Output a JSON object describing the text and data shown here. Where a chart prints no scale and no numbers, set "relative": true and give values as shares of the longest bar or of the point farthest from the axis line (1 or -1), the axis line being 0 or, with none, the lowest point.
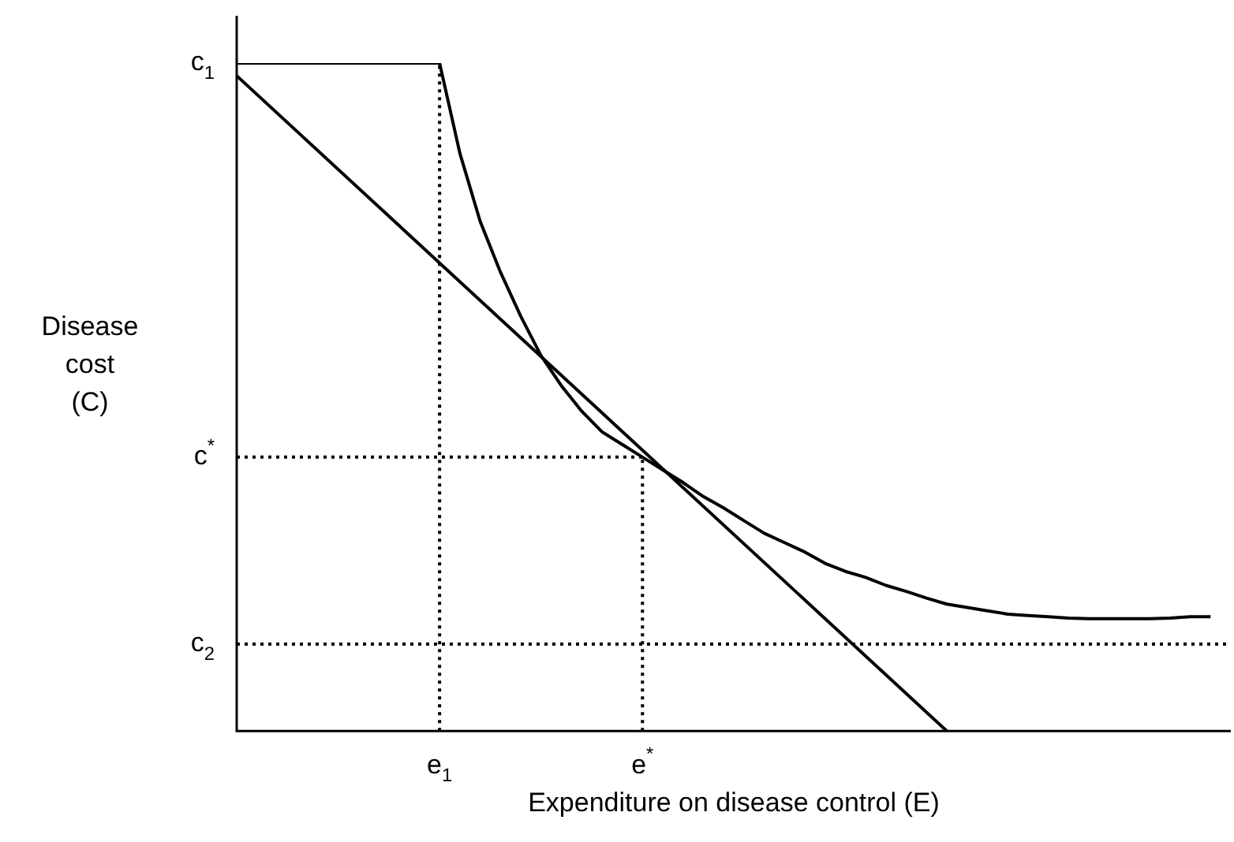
{
  "chart_data": {
    "type": "line",
    "relative": true,
    "xlabel": "Expenditure on disease control (E)",
    "ylabel": "Disease cost (C)",
    "categories": [
      null,
      null,
      null,
      null,
      null,
      null,
      null,
      null,
      null,
      null,
      "e$_{1}$",
      null,
      null,
      null,
      null,
      null,
      null,
      null,
      null,
      null,
      "e$^{*}$",
      null,
      null,
      null,
      null,
      null,
      null,
      null,
      null,
      null,
      null,
      null,
      null,
      null,
      null,
      null,
      null,
      null,
      null,
      null,
      null,
      null,
      null,
      null,
      null,
      null,
      null,
      null,
      null,
      null
    ],
    "legend": false,
    "marker": "none",
    "series": [
      {
        "name": "c$_{1}$",
        "color": "#000000",
        "line_style": "solid",
        "values": [
          1,
          1,
          1,
          1,
          1,
          1,
          1,
          1,
          1,
          1,
          1,
          0.865,
          0.763,
          0.687,
          0.621,
          0.562,
          0.517,
          0.479,
          0.448,
          0.429,
          0.41,
          0.391,
          0.372,
          0.351,
          0.334,
          0.315,
          0.296,
          0.282,
          0.268,
          0.251,
          0.239,
          0.23,
          0.218,
          0.209,
          0.199,
          0.19,
          0.185,
          0.18,
          0.175,
          0.173,
          0.171,
          0.169,
          0.168,
          0.168,
          0.168,
          0.168,
          0.169,
          0.171,
          0.171,
          null
        ]
      },
      {
        "color": "#000000",
        "line_style": "solid",
        "values": [
          0.981,
          null,
          null,
          null,
          null,
          null,
          null,
          null,
          null,
          null,
          null,
          null,
          null,
          null,
          null,
          null,
          null,
          null,
          null,
          null,
          null,
          null,
          null,
          null,
          null,
          null,
          null,
          null,
          null,
          null,
          null,
          null,
          null,
          null,
          null,
          0,
          null,
          null,
          null,
          null,
          null,
          null,
          null,
          null,
          null,
          null,
          null,
          null,
          null,
          null
        ]
      },
      {
        "name": "c$^{*}$",
        "color": "#000000",
        "line_style": "dotted",
        "values": [
          0.41,
          null,
          null,
          null,
          null,
          null,
          null,
          null,
          null,
          null,
          null,
          null,
          null,
          null,
          null,
          null,
          null,
          null,
          null,
          null,
          0.41,
          null,
          null,
          null,
          null,
          null,
          null,
          null,
          null,
          null,
          null,
          null,
          null,
          null,
          null,
          null,
          null,
          null,
          null,
          null,
          null,
          null,
          null,
          null,
          null,
          null,
          null,
          null,
          null,
          null
        ]
      },
      {
        "name": "c$_{2}$",
        "color": "#000000",
        "line_style": "dotted",
        "values": [
          0.13,
          null,
          null,
          null,
          null,
          null,
          null,
          null,
          null,
          null,
          null,
          null,
          null,
          null,
          null,
          null,
          null,
          null,
          null,
          null,
          null,
          null,
          null,
          null,
          null,
          null,
          null,
          null,
          null,
          null,
          null,
          null,
          null,
          null,
          null,
          null,
          null,
          null,
          null,
          null,
          null,
          null,
          null,
          null,
          null,
          null,
          null,
          null,
          null,
          0.13
        ]
      }
    ],
    "ref_lines": [
      {
        "axis": "x",
        "value": "e$_{1}$",
        "color": "#000000",
        "line_style": "dotted"
      },
      {
        "axis": "x",
        "value": "e$^{*}$",
        "color": "#000000",
        "line_style": "dotted"
      }
    ]
  }
}
